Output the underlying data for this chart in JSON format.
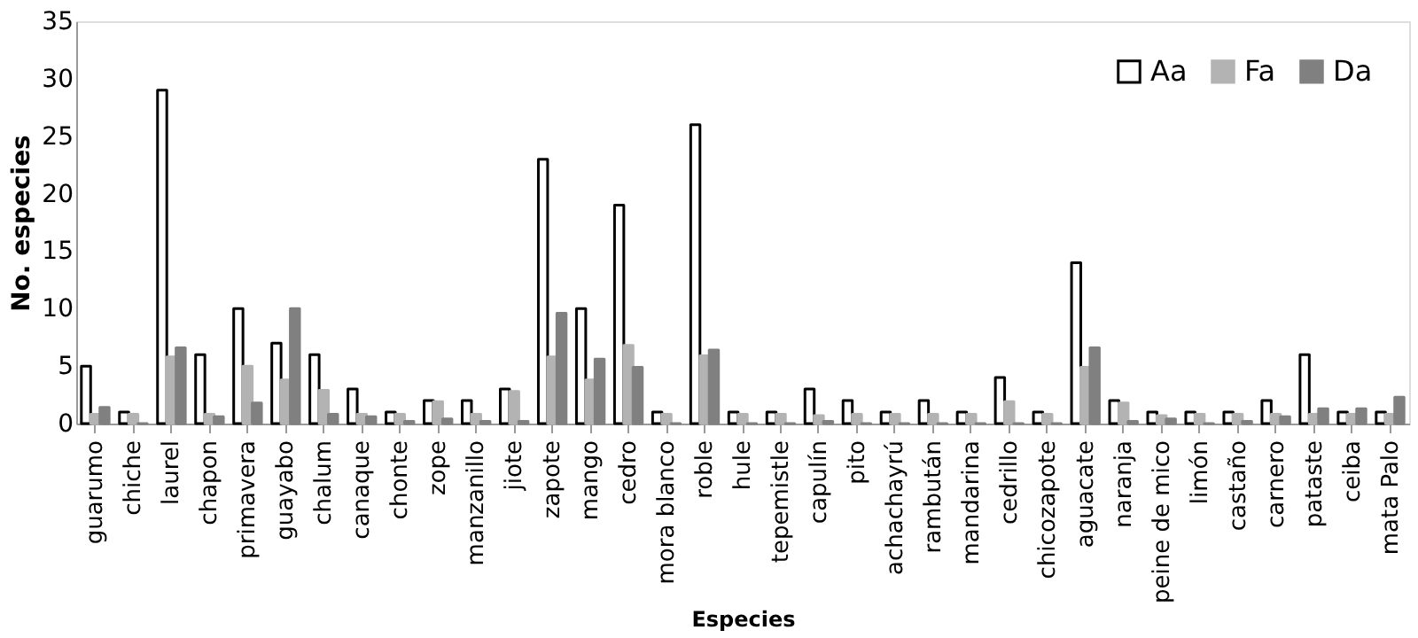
{
  "chart_data": {
    "type": "bar",
    "xlabel": "Especies",
    "ylabel": "No. especies",
    "categories": [
      "guarumo",
      "chiche",
      "laurel",
      "chapon",
      "primavera",
      "guayabo",
      "chalum",
      "canaque",
      "chonte",
      "zope",
      "manzanillo",
      "jiote",
      "zapote",
      "mango",
      "cedro",
      "mora blanco",
      "roble",
      "hule",
      "tepemistle",
      "capulín",
      "pito",
      "achachayrú",
      "rambután",
      "mandarina",
      "cedrillo",
      "chicozapote",
      "aguacate",
      "naranja",
      "peine de mico",
      "limón",
      "castaño",
      "carnero",
      "pataste",
      "ceiba",
      "mata Palo"
    ],
    "series": [
      {
        "name": "Aa",
        "color": "#ffffff",
        "values": [
          5,
          1,
          29,
          6,
          10,
          7,
          6,
          3,
          1,
          2,
          2,
          3,
          23,
          10,
          19,
          1,
          26,
          1,
          1,
          3,
          2,
          1,
          2,
          1,
          4,
          1,
          14,
          2,
          1,
          1,
          1,
          2,
          6,
          1,
          1
        ]
      },
      {
        "name": "Fa",
        "color": "#b3b3b3",
        "values": [
          0.8,
          0.8,
          5.8,
          0.8,
          5,
          3.8,
          2.9,
          0.8,
          0.8,
          1.9,
          0.8,
          2.8,
          5.8,
          3.8,
          6.8,
          0.8,
          5.9,
          0.8,
          0.8,
          0.7,
          0.8,
          0.8,
          0.8,
          0.8,
          1.9,
          0.8,
          4.9,
          1.8,
          0.7,
          0.8,
          0.8,
          0.8,
          0.8,
          0.8,
          0.8
        ]
      },
      {
        "name": "Da",
        "color": "#808080",
        "values": [
          1.4,
          0,
          6.6,
          0.6,
          1.8,
          10,
          0.8,
          0.6,
          0.2,
          0.4,
          0.2,
          0.2,
          9.6,
          5.6,
          4.9,
          0,
          6.4,
          0,
          0,
          0.2,
          0,
          0,
          0,
          0,
          0,
          0,
          6.6,
          0.2,
          0.4,
          0,
          0.2,
          0.6,
          1.3,
          1.3,
          2.3
        ]
      }
    ],
    "ylim": [
      0,
      35
    ],
    "yticks": [
      0,
      5,
      10,
      15,
      20,
      25,
      30,
      35
    ],
    "grid": false,
    "legend": "top right"
  }
}
